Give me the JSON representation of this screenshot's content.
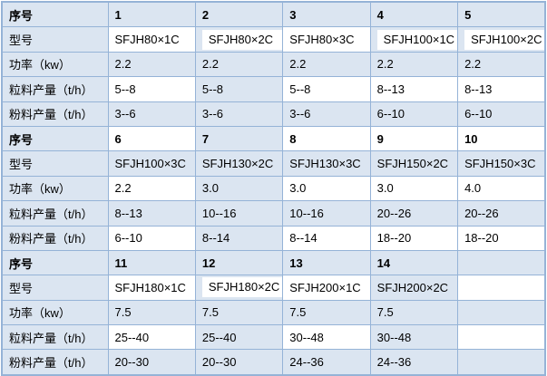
{
  "colors": {
    "cell_blue": "#dbe5f1",
    "cell_white": "#ffffff",
    "border": "#95b3d7",
    "text": "#000000"
  },
  "table": {
    "row_labels": [
      "序号",
      "型号",
      "功率（kw）",
      "粒料产量（t/h）",
      "粉料产量（t/h）"
    ],
    "rows": [
      {
        "label": "序号",
        "serial_row": true,
        "cells": [
          {
            "text": "1",
            "bg": "b"
          },
          {
            "text": "2",
            "bg": "b"
          },
          {
            "text": "3",
            "bg": "b"
          },
          {
            "text": "4",
            "bg": "b"
          },
          {
            "text": "5",
            "bg": "b"
          }
        ]
      },
      {
        "label": "型号",
        "serial_row": false,
        "cells": [
          {
            "text": "SFJH80×1C",
            "bg": "w"
          },
          {
            "text": "SFJH80×2C",
            "bg": "h"
          },
          {
            "text": "SFJH80×3C",
            "bg": "w"
          },
          {
            "text": "SFJH100×1C",
            "bg": "h"
          },
          {
            "text": "SFJH100×2C",
            "bg": "h"
          }
        ]
      },
      {
        "label": "功率（kw）",
        "serial_row": false,
        "cells": [
          {
            "text": "2.2",
            "bg": "b"
          },
          {
            "text": "2.2",
            "bg": "b"
          },
          {
            "text": "2.2",
            "bg": "b"
          },
          {
            "text": "2.2",
            "bg": "b"
          },
          {
            "text": "2.2",
            "bg": "b"
          }
        ]
      },
      {
        "label": "粒料产量（t/h）",
        "serial_row": false,
        "cells": [
          {
            "text": "5--8",
            "bg": "w"
          },
          {
            "text": "5--8",
            "bg": "b"
          },
          {
            "text": "5--8",
            "bg": "w"
          },
          {
            "text": "8--13",
            "bg": "w"
          },
          {
            "text": "8--13",
            "bg": "w"
          }
        ]
      },
      {
        "label": "粉料产量（t/h）",
        "serial_row": false,
        "cells": [
          {
            "text": "3--6",
            "bg": "b"
          },
          {
            "text": "3--6",
            "bg": "b"
          },
          {
            "text": "3--6",
            "bg": "b"
          },
          {
            "text": "6--10",
            "bg": "b"
          },
          {
            "text": "6--10",
            "bg": "b"
          }
        ]
      },
      {
        "label": "序号",
        "serial_row": true,
        "cells": [
          {
            "text": "6",
            "bg": "w"
          },
          {
            "text": "7",
            "bg": "b"
          },
          {
            "text": "8",
            "bg": "w"
          },
          {
            "text": "9",
            "bg": "w"
          },
          {
            "text": "10",
            "bg": "w"
          }
        ]
      },
      {
        "label": "型号",
        "serial_row": false,
        "cells": [
          {
            "text": "SFJH100×3C",
            "bg": "b"
          },
          {
            "text": "SFJH130×2C",
            "bg": "b"
          },
          {
            "text": "SFJH130×3C",
            "bg": "b"
          },
          {
            "text": "SFJH150×2C",
            "bg": "b"
          },
          {
            "text": "SFJH150×3C",
            "bg": "b"
          }
        ]
      },
      {
        "label": "功率（kw）",
        "serial_row": false,
        "cells": [
          {
            "text": "2.2",
            "bg": "w"
          },
          {
            "text": "3.0",
            "bg": "b"
          },
          {
            "text": "3.0",
            "bg": "w"
          },
          {
            "text": "3.0",
            "bg": "w"
          },
          {
            "text": "4.0",
            "bg": "w"
          }
        ]
      },
      {
        "label": "粒料产量（t/h）",
        "serial_row": false,
        "cells": [
          {
            "text": "8--13",
            "bg": "b"
          },
          {
            "text": "10--16",
            "bg": "b"
          },
          {
            "text": "10--16",
            "bg": "b"
          },
          {
            "text": "20--26",
            "bg": "b"
          },
          {
            "text": "20--26",
            "bg": "b"
          }
        ]
      },
      {
        "label": "粉料产量（t/h）",
        "serial_row": false,
        "cells": [
          {
            "text": "6--10",
            "bg": "w"
          },
          {
            "text": "8--14",
            "bg": "b"
          },
          {
            "text": "8--14",
            "bg": "w"
          },
          {
            "text": "18--20",
            "bg": "w"
          },
          {
            "text": "18--20",
            "bg": "w"
          }
        ]
      },
      {
        "label": "序号",
        "serial_row": true,
        "cells": [
          {
            "text": "11",
            "bg": "b"
          },
          {
            "text": "12",
            "bg": "b"
          },
          {
            "text": "13",
            "bg": "b"
          },
          {
            "text": "14",
            "bg": "b"
          },
          {
            "text": "",
            "bg": "b"
          }
        ]
      },
      {
        "label": "型号",
        "serial_row": false,
        "cells": [
          {
            "text": "SFJH180×1C",
            "bg": "w"
          },
          {
            "text": "SFJH180×2C",
            "bg": "h"
          },
          {
            "text": "SFJH200×1C",
            "bg": "w"
          },
          {
            "text": "SFJH200×2C",
            "bg": "b"
          },
          {
            "text": "",
            "bg": "w"
          }
        ]
      },
      {
        "label": "功率（kw）",
        "serial_row": false,
        "cells": [
          {
            "text": "7.5",
            "bg": "b"
          },
          {
            "text": "7.5",
            "bg": "b"
          },
          {
            "text": "7.5",
            "bg": "b"
          },
          {
            "text": "7.5",
            "bg": "b"
          },
          {
            "text": "",
            "bg": "b"
          }
        ]
      },
      {
        "label": "粒料产量（t/h）",
        "serial_row": false,
        "cells": [
          {
            "text": "25--40",
            "bg": "w"
          },
          {
            "text": "25--40",
            "bg": "b"
          },
          {
            "text": "30--48",
            "bg": "w"
          },
          {
            "text": "30--48",
            "bg": "b"
          },
          {
            "text": "",
            "bg": "w"
          }
        ]
      },
      {
        "label": "粉料产量（t/h）",
        "serial_row": false,
        "cells": [
          {
            "text": "20--30",
            "bg": "b"
          },
          {
            "text": "20--30",
            "bg": "b"
          },
          {
            "text": "24--36",
            "bg": "b"
          },
          {
            "text": "24--36",
            "bg": "b"
          },
          {
            "text": "",
            "bg": "b"
          }
        ]
      }
    ]
  }
}
